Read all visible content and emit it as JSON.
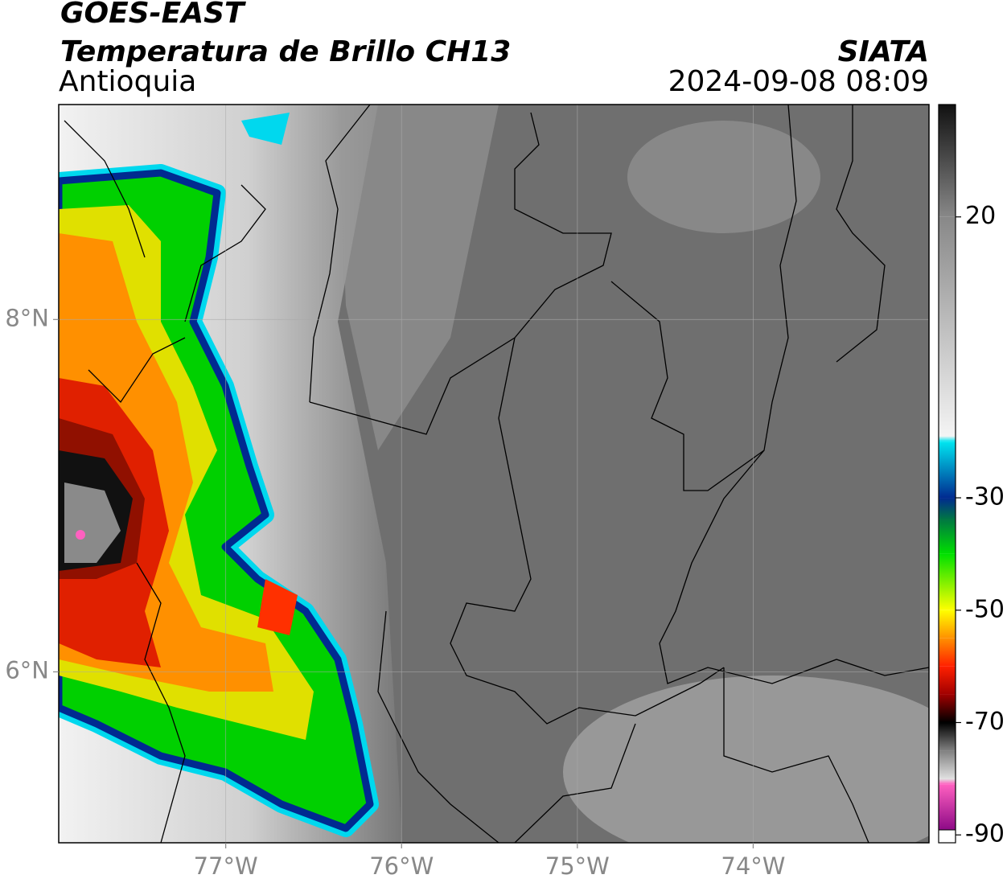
{
  "header": {
    "title": "GOES-EAST",
    "subtitle": "Temperatura de Brillo CH13",
    "region": "Antioquia",
    "source": "SIATA",
    "datetime": "2024-09-08 08:09"
  },
  "map": {
    "xlim": [
      -77.95,
      -73.0
    ],
    "ylim": [
      5.03,
      9.22
    ],
    "xticks": [
      {
        "value": -77,
        "label": "77°W"
      },
      {
        "value": -76,
        "label": "76°W"
      },
      {
        "value": -75,
        "label": "75°W"
      },
      {
        "value": -74,
        "label": "74°W"
      }
    ],
    "yticks": [
      {
        "value": 6,
        "label": "6°N"
      },
      {
        "value": 8,
        "label": "8°N"
      }
    ],
    "grid": true
  },
  "colorbar": {
    "lim": [
      -91.4,
      40
    ],
    "ticks": [
      20,
      -30,
      -50,
      -70,
      -90
    ],
    "stops": [
      {
        "value": 40,
        "color": "#111111"
      },
      {
        "value": 20,
        "color": "#888888"
      },
      {
        "value": -19,
        "color": "#f4f4f4"
      },
      {
        "value": -20,
        "color": "#00e5f0"
      },
      {
        "value": -30,
        "color": "#002a90"
      },
      {
        "value": -34,
        "color": "#007a40"
      },
      {
        "value": -40,
        "color": "#00e000"
      },
      {
        "value": -50,
        "color": "#ffff00"
      },
      {
        "value": -55,
        "color": "#ff9000"
      },
      {
        "value": -60,
        "color": "#ff2000"
      },
      {
        "value": -65,
        "color": "#a00000"
      },
      {
        "value": -70,
        "color": "#000000"
      },
      {
        "value": -75,
        "color": "#808080"
      },
      {
        "value": -80,
        "color": "#e0e0e0"
      },
      {
        "value": -81,
        "color": "#ff60c0"
      },
      {
        "value": -90,
        "color": "#800080"
      }
    ]
  }
}
